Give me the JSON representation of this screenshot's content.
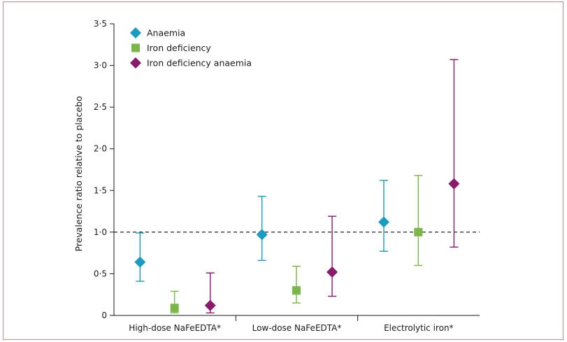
{
  "chart_data": {
    "type": "scatter",
    "subtype": "point-estimate-with-confidence-intervals",
    "ylabel": "Prevalence ratio relative to placebo",
    "ylim": [
      0,
      3.5
    ],
    "y_ticks": [
      0,
      0.5,
      1.0,
      1.5,
      2.0,
      2.5,
      3.0,
      3.5
    ],
    "y_tick_labels": [
      "0",
      "0·5",
      "1·0",
      "1·5",
      "2·0",
      "2·5",
      "3·0",
      "3·5"
    ],
    "categories": [
      "High-dose NaFeEDTA*",
      "Low-dose NaFeEDTA*",
      "Electrolytic iron*"
    ],
    "reference_line": {
      "y": 1.0,
      "style": "dashed"
    },
    "legend_position": "top-left",
    "grid": false,
    "series": [
      {
        "name": "Anaemia",
        "marker": "diamond",
        "color": "#1a9cc0",
        "values": [
          0.64,
          0.97,
          1.12
        ],
        "lower": [
          0.41,
          0.66,
          0.77
        ],
        "upper": [
          0.99,
          1.43,
          1.62
        ]
      },
      {
        "name": "Iron deficiency",
        "marker": "square",
        "color": "#7ab648",
        "values": [
          0.09,
          0.3,
          1.0
        ],
        "lower": [
          0.03,
          0.15,
          0.6
        ],
        "upper": [
          0.29,
          0.59,
          1.68
        ]
      },
      {
        "name": "Iron deficiency anaemia",
        "marker": "diamond",
        "color": "#8b1a6b",
        "values": [
          0.12,
          0.52,
          1.58
        ],
        "lower": [
          0.03,
          0.23,
          0.82
        ],
        "upper": [
          0.51,
          1.19,
          3.07
        ]
      }
    ]
  },
  "colors": {
    "frame_border": "#c98b8b",
    "axis": "#1a1a1a"
  }
}
